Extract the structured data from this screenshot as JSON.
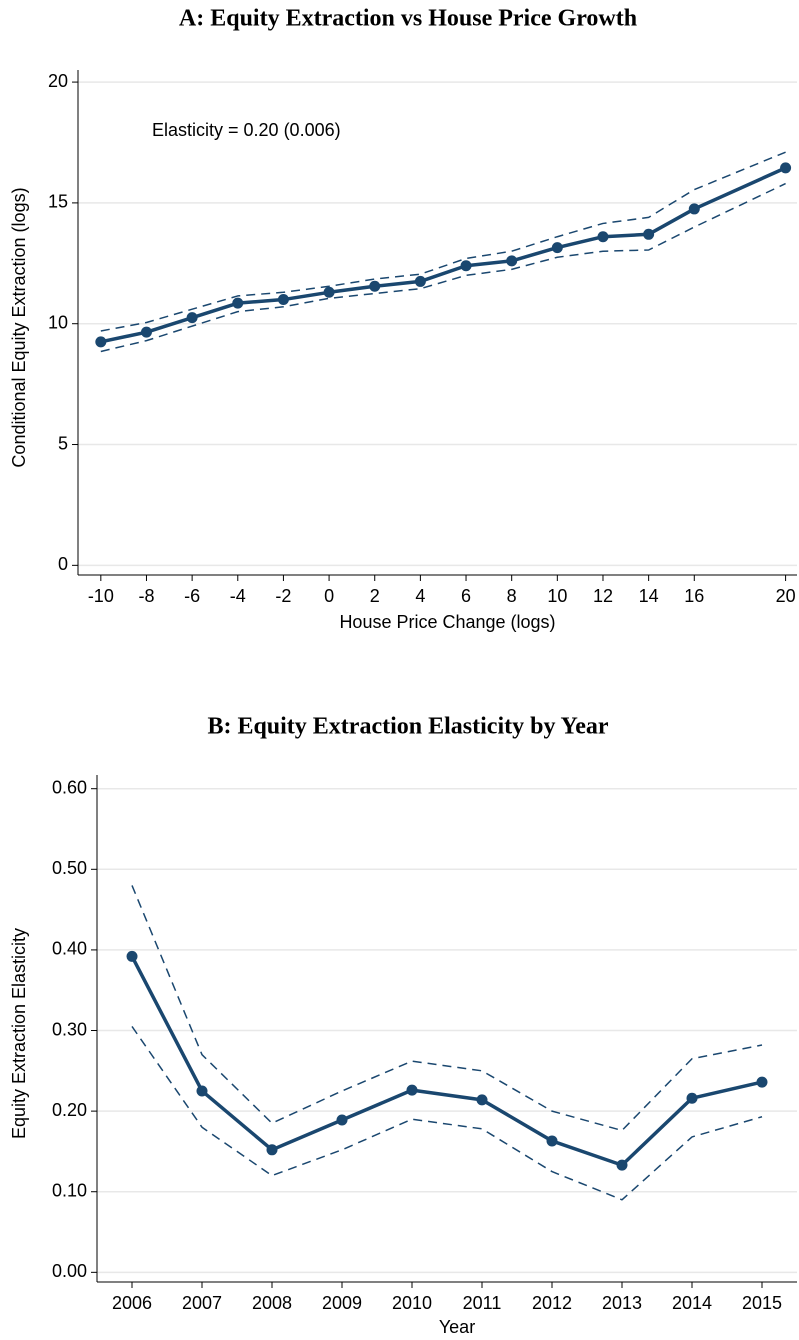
{
  "chart_data": [
    {
      "type": "line",
      "title": "A: Equity Extraction vs House Price Growth",
      "x_label": "House Price Change (logs)",
      "y_label": "Conditional Equity Extraction (logs)",
      "annotation": "Elasticity = 0.20 (0.006)",
      "x": [
        -10,
        -8,
        -6,
        -4,
        -2,
        0,
        2,
        4,
        6,
        8,
        10,
        12,
        14,
        16,
        20
      ],
      "series": [
        {
          "color": "#1a476f",
          "dashed": false,
          "markers": true,
          "values": [
            9.25,
            9.65,
            10.25,
            10.85,
            11.0,
            11.3,
            11.55,
            11.75,
            12.4,
            12.6,
            13.15,
            13.6,
            13.7,
            14.75,
            16.45
          ]
        },
        {
          "color": "#1a476f",
          "dashed": true,
          "markers": false,
          "values": [
            9.7,
            10.05,
            10.6,
            11.15,
            11.3,
            11.55,
            11.85,
            12.05,
            12.7,
            13.0,
            13.6,
            14.15,
            14.4,
            15.55,
            17.1
          ]
        },
        {
          "color": "#1a476f",
          "dashed": true,
          "markers": false,
          "values": [
            8.85,
            9.3,
            9.9,
            10.5,
            10.7,
            11.05,
            11.25,
            11.45,
            12.0,
            12.25,
            12.75,
            13.0,
            13.05,
            14.0,
            15.8
          ]
        }
      ],
      "xlim": [
        -11,
        20.5
      ],
      "xticks": [
        -10,
        -8,
        -6,
        -4,
        -2,
        0,
        2,
        4,
        6,
        8,
        10,
        12,
        14,
        16,
        20
      ],
      "ylim": [
        -0.4,
        20.5
      ],
      "yticks": [
        0,
        5,
        10,
        15,
        20
      ],
      "grid": true
    },
    {
      "type": "line",
      "title": "B: Equity Extraction Elasticity by Year",
      "x_label": "Year",
      "y_label": "Equity Extraction Elasticity",
      "categories": [
        "2006",
        "2007",
        "2008",
        "2009",
        "2010",
        "2011",
        "2012",
        "2013",
        "2014",
        "2015"
      ],
      "series": [
        {
          "color": "#1a476f",
          "dashed": false,
          "markers": true,
          "values": [
            0.392,
            0.225,
            0.152,
            0.189,
            0.226,
            0.214,
            0.163,
            0.133,
            0.216,
            0.236
          ]
        },
        {
          "color": "#1a476f",
          "dashed": true,
          "markers": false,
          "values": [
            0.48,
            0.27,
            0.185,
            0.225,
            0.262,
            0.25,
            0.2,
            0.176,
            0.265,
            0.282
          ]
        },
        {
          "color": "#1a476f",
          "dashed": true,
          "markers": false,
          "values": [
            0.305,
            0.18,
            0.12,
            0.152,
            0.19,
            0.178,
            0.125,
            0.09,
            0.168,
            0.193
          ]
        }
      ],
      "ylim": [
        -0.012,
        0.617
      ],
      "yticks": [
        {
          "value": 0,
          "label": "0.00"
        },
        {
          "value": 0.1,
          "label": "0.10"
        },
        {
          "value": 0.2,
          "label": "0.20"
        },
        {
          "value": 0.3,
          "label": "0.30"
        },
        {
          "value": 0.4,
          "label": "0.40"
        },
        {
          "value": 0.5,
          "label": "0.50"
        },
        {
          "value": 0.6,
          "label": "0.60"
        }
      ],
      "grid": true
    }
  ]
}
